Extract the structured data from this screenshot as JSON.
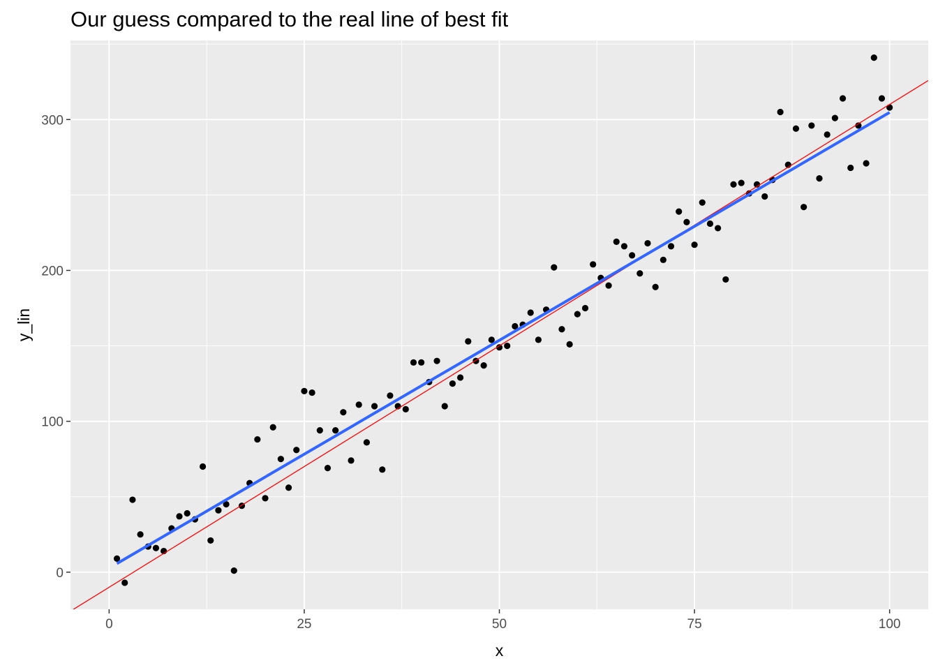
{
  "chart_data": {
    "type": "scatter",
    "title": "Our guess compared to the real line of best fit",
    "xlabel": "x",
    "ylabel": "y_lin",
    "xlim": [
      -4.95,
      104.95
    ],
    "ylim": [
      -24.6,
      352.4
    ],
    "x_ticks": [
      0,
      25,
      50,
      75,
      100
    ],
    "y_ticks": [
      0,
      100,
      200,
      300
    ],
    "x_tick_labels": [
      "0",
      "25",
      "50",
      "75",
      "100"
    ],
    "y_tick_labels": [
      "0",
      "100",
      "200",
      "300"
    ],
    "grid": true,
    "legend": "none",
    "panel_background": "#ebebeb",
    "grid_color": "#ffffff",
    "point_color": "#000000",
    "series": [
      {
        "kind": "points",
        "x": [
          1,
          2,
          3,
          4,
          5,
          6,
          7,
          8,
          9,
          10,
          11,
          12,
          13,
          14,
          15,
          16,
          17,
          18,
          19,
          20,
          21,
          22,
          23,
          24,
          25,
          26,
          27,
          28,
          29,
          30,
          31,
          32,
          33,
          34,
          35,
          36,
          37,
          38,
          39,
          40,
          41,
          42,
          43,
          44,
          45,
          46,
          47,
          48,
          49,
          50,
          51,
          52,
          53,
          54,
          55,
          56,
          57,
          58,
          59,
          60,
          61,
          62,
          63,
          64,
          65,
          66,
          67,
          68,
          69,
          70,
          71,
          72,
          73,
          74,
          75,
          76,
          77,
          78,
          79,
          80,
          81,
          82,
          83,
          84,
          85,
          86,
          87,
          88,
          89,
          90,
          91,
          92,
          93,
          94,
          95,
          96,
          97,
          98,
          99,
          100
        ],
        "y": [
          9,
          -7,
          48,
          25,
          17,
          16,
          14,
          29,
          37,
          39,
          35,
          70,
          21,
          41,
          45,
          1,
          44,
          59,
          88,
          49,
          96,
          75,
          56,
          81,
          120,
          119,
          94,
          69,
          94,
          106,
          74,
          111,
          86,
          110,
          68,
          117,
          110,
          108,
          139,
          139,
          126,
          140,
          110,
          125,
          129,
          153,
          140,
          137,
          154,
          149,
          150,
          163,
          164,
          172,
          154,
          174,
          202,
          161,
          151,
          171,
          175,
          204,
          195,
          190,
          219,
          216,
          210,
          198,
          218,
          189,
          207,
          216,
          239,
          232,
          217,
          245,
          231,
          228,
          194,
          257,
          258,
          251,
          257,
          249,
          260,
          305,
          270,
          294,
          242,
          296,
          261,
          290,
          301,
          314,
          268,
          296,
          271,
          341,
          314,
          308
        ]
      },
      {
        "kind": "line",
        "name": "guess",
        "color": "#ff0000",
        "intercept": -10,
        "slope": 3.2
      },
      {
        "kind": "line",
        "name": "fit",
        "color": "#3366ff",
        "x": [
          1,
          100
        ],
        "y": [
          5.7,
          304.7
        ]
      }
    ]
  }
}
